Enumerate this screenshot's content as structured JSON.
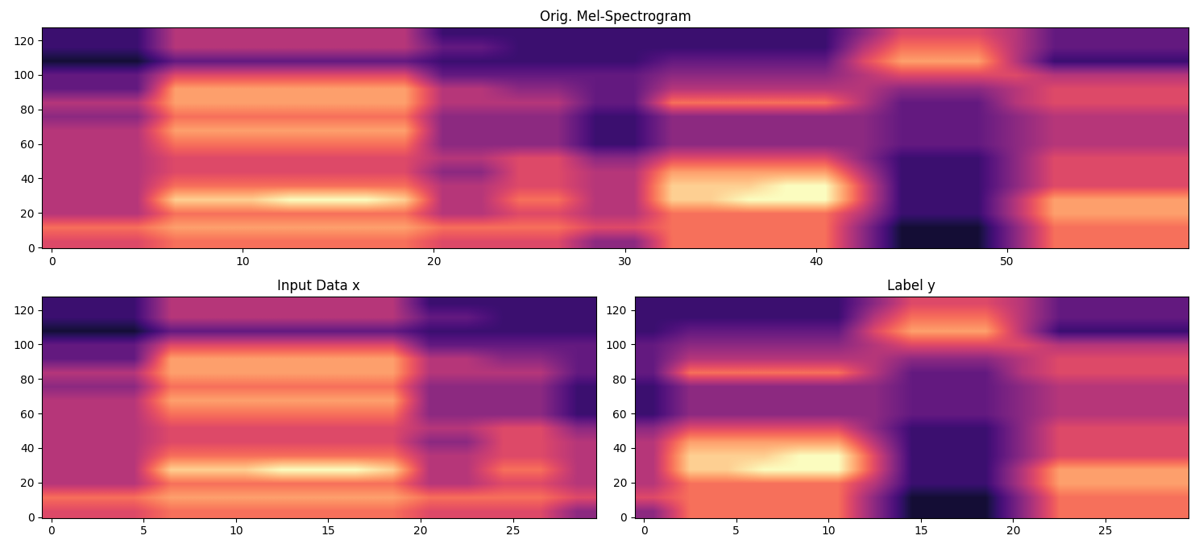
{
  "chart_data": [
    {
      "type": "heatmap",
      "title": "Orig. Mel-Spectrogram",
      "color": "magma",
      "color_range": [
        0,
        10
      ],
      "xlim": [
        -0.5,
        59.5
      ],
      "ylim": [
        -0.5,
        127.5
      ],
      "xticks": [
        0,
        10,
        20,
        30,
        40,
        50
      ],
      "yticks": [
        0,
        20,
        40,
        60,
        80,
        100,
        120
      ],
      "cells": [
        [
          6,
          6,
          6,
          7,
          7,
          7,
          7,
          7,
          7,
          7,
          6,
          6,
          6,
          6,
          4,
          4,
          7,
          7,
          7,
          7,
          7,
          4,
          1,
          1,
          1,
          4,
          7,
          7,
          7,
          7
        ],
        [
          7,
          7,
          7,
          8,
          8,
          8,
          8,
          8,
          8,
          8,
          7,
          7,
          7,
          7,
          6,
          6,
          7,
          7,
          7,
          7,
          7,
          4,
          1,
          1,
          1,
          4,
          7,
          7,
          7,
          7
        ],
        [
          5,
          5,
          5,
          7,
          7,
          7,
          7,
          7,
          7,
          7,
          5,
          5,
          6,
          6,
          5,
          5,
          7,
          7,
          7,
          7,
          7,
          5,
          2,
          2,
          2,
          5,
          8,
          8,
          8,
          8
        ],
        [
          5,
          5,
          5,
          9,
          9,
          9,
          10,
          10,
          10,
          9,
          5,
          5,
          7,
          7,
          5,
          5,
          9,
          9,
          10,
          10,
          10,
          6,
          2,
          2,
          2,
          5,
          8,
          8,
          8,
          8
        ],
        [
          5,
          5,
          5,
          7,
          7,
          7,
          7,
          7,
          7,
          7,
          5,
          5,
          6,
          6,
          5,
          5,
          9,
          9,
          9,
          10,
          10,
          6,
          2,
          2,
          2,
          4,
          6,
          6,
          6,
          6
        ],
        [
          5,
          5,
          5,
          6,
          6,
          6,
          6,
          6,
          6,
          6,
          4,
          4,
          6,
          6,
          5,
          5,
          8,
          8,
          8,
          8,
          8,
          5,
          2,
          2,
          2,
          4,
          6,
          6,
          6,
          6
        ],
        [
          5,
          5,
          5,
          6,
          6,
          6,
          6,
          6,
          6,
          6,
          5,
          5,
          6,
          6,
          4,
          4,
          6,
          6,
          6,
          6,
          6,
          4,
          2,
          2,
          2,
          4,
          6,
          6,
          6,
          6
        ],
        [
          5,
          5,
          5,
          7,
          7,
          7,
          7,
          7,
          7,
          7,
          4,
          4,
          4,
          4,
          2,
          2,
          4,
          4,
          4,
          4,
          4,
          4,
          3,
          3,
          3,
          4,
          5,
          5,
          5,
          5
        ],
        [
          5,
          5,
          5,
          8,
          8,
          8,
          8,
          8,
          8,
          8,
          4,
          4,
          4,
          4,
          2,
          2,
          4,
          4,
          4,
          4,
          4,
          4,
          3,
          3,
          3,
          4,
          5,
          5,
          5,
          5
        ],
        [
          4,
          4,
          4,
          7,
          7,
          7,
          7,
          7,
          7,
          7,
          4,
          4,
          4,
          4,
          2,
          2,
          4,
          4,
          4,
          4,
          4,
          4,
          3,
          3,
          3,
          4,
          5,
          5,
          5,
          5
        ],
        [
          5,
          5,
          5,
          8,
          8,
          8,
          8,
          8,
          8,
          8,
          5,
          5,
          5,
          5,
          3,
          3,
          7,
          7,
          7,
          7,
          7,
          5,
          3,
          3,
          3,
          5,
          6,
          6,
          6,
          6
        ],
        [
          3,
          3,
          3,
          8,
          8,
          8,
          8,
          8,
          8,
          8,
          5,
          5,
          4,
          4,
          3,
          3,
          5,
          5,
          5,
          5,
          5,
          5,
          4,
          4,
          4,
          5,
          6,
          6,
          6,
          6
        ],
        [
          3,
          3,
          3,
          6,
          6,
          6,
          6,
          6,
          6,
          6,
          3,
          3,
          3,
          3,
          3,
          3,
          4,
          4,
          4,
          4,
          4,
          5,
          6,
          6,
          6,
          6,
          5,
          5,
          5,
          5
        ],
        [
          1,
          1,
          1,
          3,
          3,
          3,
          3,
          3,
          3,
          3,
          2,
          2,
          2,
          2,
          2,
          2,
          3,
          3,
          3,
          3,
          3,
          6,
          8,
          8,
          8,
          5,
          2,
          2,
          2,
          2
        ],
        [
          2,
          2,
          2,
          5,
          5,
          5,
          5,
          5,
          5,
          5,
          3,
          3,
          2,
          2,
          2,
          2,
          2,
          2,
          2,
          2,
          2,
          5,
          7,
          7,
          7,
          5,
          3,
          3,
          3,
          3
        ],
        [
          2,
          2,
          2,
          5,
          5,
          5,
          5,
          5,
          5,
          5,
          2,
          2,
          2,
          2,
          2,
          2,
          2,
          2,
          2,
          2,
          2,
          4,
          6,
          6,
          6,
          5,
          3,
          3,
          3,
          3
        ]
      ]
    },
    {
      "type": "heatmap",
      "title": "Input Data x",
      "color": "magma",
      "color_range": [
        0,
        10
      ],
      "xlim": [
        -0.5,
        29.5
      ],
      "ylim": [
        -0.5,
        127.5
      ],
      "xticks": [
        0,
        5,
        10,
        15,
        20,
        25
      ],
      "yticks": [
        0,
        20,
        40,
        60,
        80,
        100,
        120
      ],
      "cells": [
        [
          6,
          6,
          6,
          7,
          7,
          7,
          7,
          7,
          7,
          7,
          6,
          6,
          6,
          6,
          4
        ],
        [
          7,
          7,
          7,
          8,
          8,
          8,
          8,
          8,
          8,
          8,
          7,
          7,
          7,
          7,
          6
        ],
        [
          5,
          5,
          5,
          7,
          7,
          7,
          7,
          7,
          7,
          7,
          5,
          5,
          6,
          6,
          5
        ],
        [
          5,
          5,
          5,
          9,
          9,
          9,
          10,
          10,
          10,
          9,
          5,
          5,
          7,
          7,
          5
        ],
        [
          5,
          5,
          5,
          7,
          7,
          7,
          7,
          7,
          7,
          7,
          5,
          5,
          6,
          6,
          5
        ],
        [
          5,
          5,
          5,
          6,
          6,
          6,
          6,
          6,
          6,
          6,
          4,
          4,
          6,
          6,
          5
        ],
        [
          5,
          5,
          5,
          6,
          6,
          6,
          6,
          6,
          6,
          6,
          5,
          5,
          6,
          6,
          4
        ],
        [
          5,
          5,
          5,
          7,
          7,
          7,
          7,
          7,
          7,
          7,
          4,
          4,
          4,
          4,
          2
        ],
        [
          5,
          5,
          5,
          8,
          8,
          8,
          8,
          8,
          8,
          8,
          4,
          4,
          4,
          4,
          2
        ],
        [
          4,
          4,
          4,
          7,
          7,
          7,
          7,
          7,
          7,
          7,
          4,
          4,
          4,
          4,
          2
        ],
        [
          5,
          5,
          5,
          8,
          8,
          8,
          8,
          8,
          8,
          8,
          5,
          5,
          5,
          5,
          3
        ],
        [
          3,
          3,
          3,
          8,
          8,
          8,
          8,
          8,
          8,
          8,
          5,
          5,
          4,
          4,
          3
        ],
        [
          3,
          3,
          3,
          6,
          6,
          6,
          6,
          6,
          6,
          6,
          3,
          3,
          3,
          3,
          3
        ],
        [
          1,
          1,
          1,
          3,
          3,
          3,
          3,
          3,
          3,
          3,
          2,
          2,
          2,
          2,
          2
        ],
        [
          2,
          2,
          2,
          5,
          5,
          5,
          5,
          5,
          5,
          5,
          3,
          3,
          2,
          2,
          2
        ],
        [
          2,
          2,
          2,
          5,
          5,
          5,
          5,
          5,
          5,
          5,
          2,
          2,
          2,
          2,
          2
        ]
      ]
    },
    {
      "type": "heatmap",
      "title": "Label y",
      "color": "magma",
      "color_range": [
        0,
        10
      ],
      "xlim": [
        -0.5,
        29.5
      ],
      "ylim": [
        -0.5,
        127.5
      ],
      "xticks": [
        0,
        5,
        10,
        15,
        20,
        25
      ],
      "yticks": [
        0,
        20,
        40,
        60,
        80,
        100,
        120
      ],
      "cells": [
        [
          4,
          7,
          7,
          7,
          7,
          7,
          4,
          1,
          1,
          1,
          4,
          7,
          7,
          7,
          7
        ],
        [
          6,
          7,
          7,
          7,
          7,
          7,
          4,
          1,
          1,
          1,
          4,
          7,
          7,
          7,
          7
        ],
        [
          5,
          7,
          7,
          7,
          7,
          7,
          5,
          2,
          2,
          2,
          5,
          8,
          8,
          8,
          8
        ],
        [
          5,
          9,
          9,
          10,
          10,
          10,
          6,
          2,
          2,
          2,
          5,
          8,
          8,
          8,
          8
        ],
        [
          5,
          9,
          9,
          9,
          10,
          10,
          6,
          2,
          2,
          2,
          4,
          6,
          6,
          6,
          6
        ],
        [
          5,
          8,
          8,
          8,
          8,
          8,
          5,
          2,
          2,
          2,
          4,
          6,
          6,
          6,
          6
        ],
        [
          4,
          6,
          6,
          6,
          6,
          6,
          4,
          2,
          2,
          2,
          4,
          6,
          6,
          6,
          6
        ],
        [
          2,
          4,
          4,
          4,
          4,
          4,
          4,
          3,
          3,
          3,
          4,
          5,
          5,
          5,
          5
        ],
        [
          2,
          4,
          4,
          4,
          4,
          4,
          4,
          3,
          3,
          3,
          4,
          5,
          5,
          5,
          5
        ],
        [
          2,
          4,
          4,
          4,
          4,
          4,
          4,
          3,
          3,
          3,
          4,
          5,
          5,
          5,
          5
        ],
        [
          3,
          7,
          7,
          7,
          7,
          7,
          5,
          3,
          3,
          3,
          5,
          6,
          6,
          6,
          6
        ],
        [
          3,
          5,
          5,
          5,
          5,
          5,
          5,
          4,
          4,
          4,
          5,
          6,
          6,
          6,
          6
        ],
        [
          3,
          4,
          4,
          4,
          4,
          4,
          5,
          6,
          6,
          6,
          6,
          5,
          5,
          5,
          5
        ],
        [
          2,
          3,
          3,
          3,
          3,
          3,
          6,
          8,
          8,
          8,
          5,
          2,
          2,
          2,
          2
        ],
        [
          2,
          2,
          2,
          2,
          2,
          2,
          5,
          7,
          7,
          7,
          5,
          3,
          3,
          3,
          3
        ],
        [
          2,
          2,
          2,
          2,
          2,
          2,
          4,
          6,
          6,
          6,
          5,
          3,
          3,
          3,
          3
        ]
      ]
    }
  ]
}
